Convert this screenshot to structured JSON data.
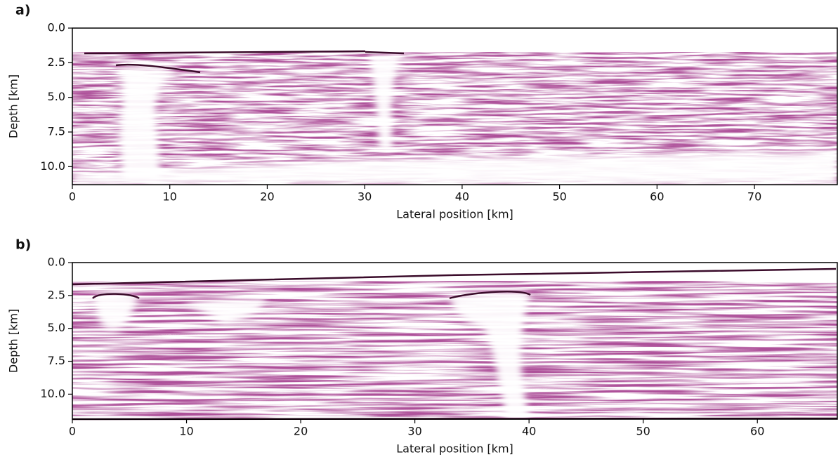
{
  "chart_data": [
    {
      "type": "image",
      "panel_label": "a)",
      "xlabel": "Lateral position [km]",
      "ylabel": "Depth [km]",
      "xlim": [
        0,
        78.5
      ],
      "ylim": [
        11.3,
        0
      ],
      "xticks": [
        0,
        10,
        20,
        30,
        40,
        50,
        60,
        70
      ],
      "yticks": [
        {
          "value": 0,
          "label": "0.0"
        },
        2.5,
        {
          "value": 5,
          "label": "5.0"
        },
        7.5,
        {
          "value": 10,
          "label": "10.0"
        }
      ]
    },
    {
      "type": "image",
      "panel_label": "b)",
      "xlabel": "Lateral position [km]",
      "ylabel": "Depth [km]",
      "xlim": [
        0,
        67
      ],
      "ylim": [
        11.9,
        0
      ],
      "xticks": [
        0,
        10,
        20,
        30,
        40,
        50,
        60
      ],
      "yticks": [
        {
          "value": 0,
          "label": "0.0"
        },
        2.5,
        {
          "value": 5,
          "label": "5.0"
        },
        7.5,
        {
          "value": 10,
          "label": "10.0"
        }
      ]
    }
  ]
}
